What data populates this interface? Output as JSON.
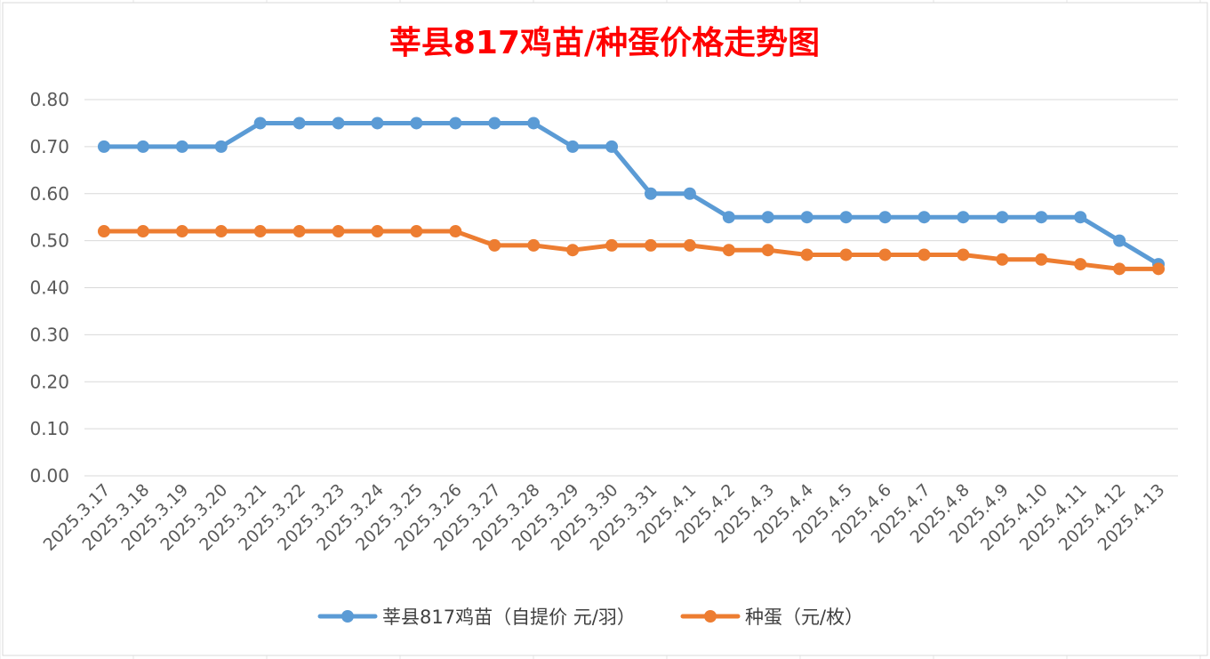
{
  "chart_data": {
    "type": "line",
    "title": "莘县817鸡苗/种蛋价格走势图",
    "categories": [
      "2025.3.17",
      "2025.3.18",
      "2025.3.19",
      "2025.3.20",
      "2025.3.21",
      "2025.3.22",
      "2025.3.23",
      "2025.3.24",
      "2025.3.25",
      "2025.3.26",
      "2025.3.27",
      "2025.3.28",
      "2025.3.29",
      "2025.3.30",
      "2025.3.31",
      "2025.4.1",
      "2025.4.2",
      "2025.4.3",
      "2025.4.4",
      "2025.4.5",
      "2025.4.6",
      "2025.4.7",
      "2025.4.8",
      "2025.4.9",
      "2025.4.10",
      "2025.4.11",
      "2025.4.12",
      "2025.4.13"
    ],
    "series": [
      {
        "name": "莘县817鸡苗（自提价 元/羽）",
        "color": "#5b9bd5",
        "values": [
          0.7,
          0.7,
          0.7,
          0.7,
          0.75,
          0.75,
          0.75,
          0.75,
          0.75,
          0.75,
          0.75,
          0.75,
          0.7,
          0.7,
          0.6,
          0.6,
          0.55,
          0.55,
          0.55,
          0.55,
          0.55,
          0.55,
          0.55,
          0.55,
          0.55,
          0.55,
          0.5,
          0.45
        ]
      },
      {
        "name": "种蛋（元/枚）",
        "color": "#ed7d31",
        "values": [
          0.52,
          0.52,
          0.52,
          0.52,
          0.52,
          0.52,
          0.52,
          0.52,
          0.52,
          0.52,
          0.49,
          0.49,
          0.48,
          0.49,
          0.49,
          0.49,
          0.48,
          0.48,
          0.47,
          0.47,
          0.47,
          0.47,
          0.47,
          0.46,
          0.46,
          0.45,
          0.44,
          0.44
        ]
      }
    ],
    "yticks": [
      "0.00",
      "0.10",
      "0.20",
      "0.30",
      "0.40",
      "0.50",
      "0.60",
      "0.70",
      "0.80"
    ],
    "ylim": [
      0,
      0.8
    ],
    "grid": true,
    "legend": "bottom"
  }
}
